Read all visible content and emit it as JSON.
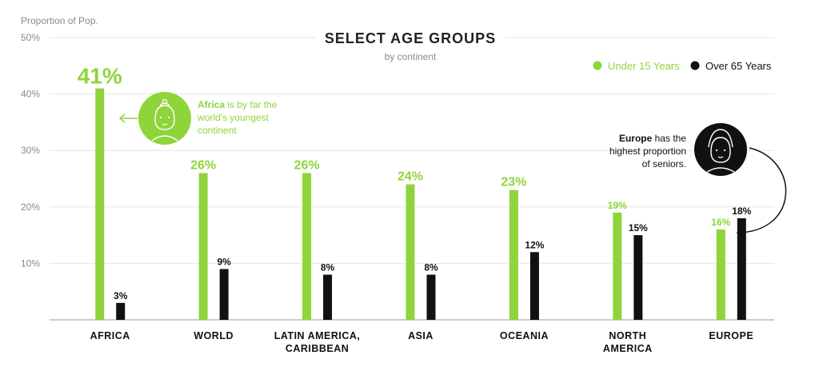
{
  "colors": {
    "green": "#8fd43b",
    "black": "#111111",
    "grid": "#e6e6e6",
    "muted": "#8a8a8a"
  },
  "icons": [
    "child-face-icon",
    "elderly-face-icon",
    "arrow-left-icon",
    "curved-arrow-icon"
  ],
  "annotations": {
    "africa": {
      "bold": "Africa",
      "rest": " is by far the",
      "line2": "world's youngest",
      "line3": "continent"
    },
    "europe": {
      "bold": "Europe",
      "rest": " has the",
      "line2": "highest proportion",
      "line3": "of seniors."
    }
  },
  "chart_data": {
    "type": "bar",
    "title": "SELECT AGE GROUPS",
    "subtitle": "by continent",
    "ylabel": "Proportion of Pop.",
    "ylim": [
      0,
      50
    ],
    "yticks": [
      "10%",
      "20%",
      "30%",
      "40%",
      "50%"
    ],
    "grid": true,
    "legend_position": "top-right",
    "categories": [
      [
        "AFRICA"
      ],
      [
        "WORLD"
      ],
      [
        "LATIN AMERICA,",
        "CARIBBEAN"
      ],
      [
        "ASIA"
      ],
      [
        "OCEANIA"
      ],
      [
        "NORTH",
        "AMERICA"
      ],
      [
        "EUROPE"
      ]
    ],
    "series": [
      {
        "name": "Under 15 Years",
        "color": "#8fd43b",
        "values": [
          41,
          26,
          26,
          24,
          23,
          19,
          16
        ],
        "labels": [
          "41%",
          "26%",
          "26%",
          "24%",
          "23%",
          "19%",
          "16%"
        ]
      },
      {
        "name": "Over 65 Years",
        "color": "#111111",
        "values": [
          3,
          9,
          8,
          8,
          12,
          15,
          18
        ],
        "labels": [
          "3%",
          "9%",
          "8%",
          "8%",
          "12%",
          "15%",
          "18%"
        ]
      }
    ]
  }
}
